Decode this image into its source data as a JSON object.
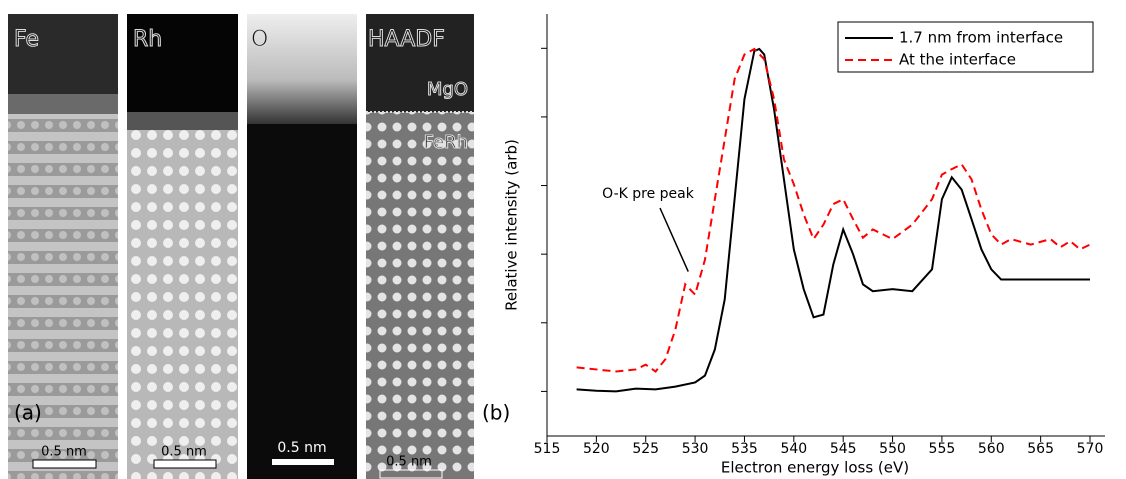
{
  "panels": {
    "a": {
      "label": "(a)",
      "images": [
        {
          "label": "Fe",
          "scale_bar": "0.5 nm"
        },
        {
          "label": "Rh",
          "scale_bar": "0.5 nm"
        },
        {
          "label": "O",
          "scale_bar": "0.5 nm"
        },
        {
          "label": "HAADF",
          "scale_bar": "0.5 nm",
          "regions": [
            "MgO",
            "FeRh"
          ]
        }
      ]
    },
    "b": {
      "label": "(b)"
    }
  },
  "chart_data": {
    "type": "line",
    "x_label": "Electron energy loss (eV)",
    "y_label": "Relative intensity (arb)",
    "xlim": [
      515,
      570
    ],
    "xticks": [
      515,
      520,
      525,
      530,
      535,
      540,
      545,
      550,
      555,
      560,
      565,
      570
    ],
    "ylim": [
      0.35,
      6.5
    ],
    "yticks": [
      1,
      2,
      3,
      4,
      5,
      6
    ],
    "legend": "top-right",
    "annotation": {
      "text": "O-K pre peak",
      "x": 529,
      "y": 2.6
    },
    "series": [
      {
        "name": "1.7 nm from interface",
        "color": "#000000",
        "dash": false,
        "x": [
          518,
          520,
          522,
          524,
          526,
          528,
          530,
          531,
          532,
          533,
          534,
          535,
          536,
          536.5,
          537,
          538,
          539,
          540,
          541,
          542,
          543,
          544,
          545,
          546,
          547,
          548,
          550,
          552,
          554,
          555,
          556,
          557,
          558,
          559,
          560,
          561,
          565,
          570
        ],
        "values": [
          1.03,
          1.01,
          1.0,
          1.04,
          1.03,
          1.07,
          1.13,
          1.23,
          1.61,
          2.34,
          3.8,
          5.26,
          5.96,
          5.99,
          5.91,
          5.11,
          4.09,
          3.07,
          2.49,
          2.08,
          2.12,
          2.85,
          3.36,
          3.0,
          2.56,
          2.46,
          2.49,
          2.46,
          2.78,
          3.8,
          4.12,
          3.94,
          3.51,
          3.07,
          2.78,
          2.63,
          2.63,
          2.63
        ]
      },
      {
        "name": "At the interface",
        "color": "#ff0000",
        "dash": true,
        "x": [
          518,
          520,
          522,
          524,
          525,
          526,
          527,
          528,
          529,
          530,
          531,
          532,
          533,
          534,
          535,
          536,
          537,
          538,
          539,
          540,
          541,
          542,
          543,
          544,
          545,
          546,
          547,
          548,
          550,
          552,
          554,
          555,
          556,
          557,
          558,
          559,
          560,
          561,
          562,
          564,
          566,
          567,
          568,
          569,
          570
        ],
        "values": [
          1.35,
          1.32,
          1.29,
          1.32,
          1.39,
          1.29,
          1.47,
          1.9,
          2.56,
          2.41,
          2.92,
          3.8,
          4.67,
          5.55,
          5.91,
          5.99,
          5.84,
          5.26,
          4.38,
          4.02,
          3.58,
          3.22,
          3.43,
          3.73,
          3.8,
          3.51,
          3.24,
          3.36,
          3.22,
          3.43,
          3.8,
          4.16,
          4.24,
          4.31,
          4.09,
          3.65,
          3.29,
          3.14,
          3.22,
          3.14,
          3.22,
          3.1,
          3.19,
          3.07,
          3.14
        ]
      }
    ]
  }
}
